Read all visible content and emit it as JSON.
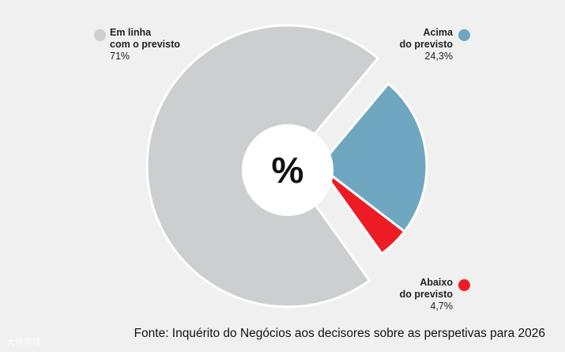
{
  "chart_data": {
    "type": "pie",
    "style": "donut",
    "center_text": "%",
    "slices": [
      {
        "label_line1": "Em linha",
        "label_line2": "com o previsto",
        "value": 71,
        "value_text": "71%",
        "color": "#cdced0"
      },
      {
        "label_line1": "Acima",
        "label_line2": "do previsto",
        "value": 24.3,
        "value_text": "24,3%",
        "color": "#6ea7bf"
      },
      {
        "label_line1": "Abaixo",
        "label_line2": "do previsto",
        "value": 4.7,
        "value_text": "4,7%",
        "color": "#ed1c24"
      }
    ]
  },
  "source": "Fonte: Inquérito do Negócios aos decisores sobre as perspetivas para 2026",
  "watermark": "大数跨境"
}
